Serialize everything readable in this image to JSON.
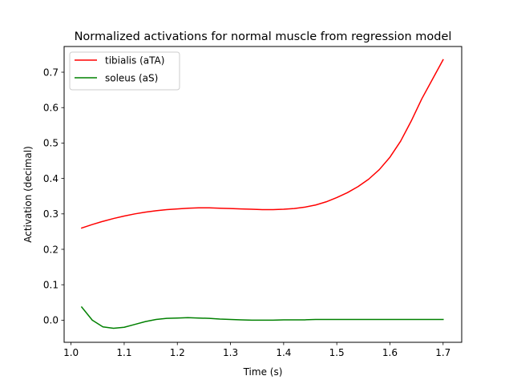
{
  "chart_data": {
    "type": "line",
    "title": "Normalized activations for normal muscle from regression model",
    "xlabel": "Time (s)",
    "ylabel": "Activation (decimal)",
    "xlim": [
      0.987,
      1.735
    ],
    "ylim": [
      -0.0625,
      0.7725
    ],
    "xticks": [
      1.0,
      1.1,
      1.2,
      1.3,
      1.4,
      1.5,
      1.6,
      1.7
    ],
    "xtick_labels": [
      "1.0",
      "1.1",
      "1.2",
      "1.3",
      "1.4",
      "1.5",
      "1.6",
      "1.7"
    ],
    "yticks": [
      0.0,
      0.1,
      0.2,
      0.3,
      0.4,
      0.5,
      0.6,
      0.7
    ],
    "ytick_labels": [
      "0.0",
      "0.1",
      "0.2",
      "0.3",
      "0.4",
      "0.5",
      "0.6",
      "0.7"
    ],
    "grid": false,
    "legend_position": "top-left",
    "series": [
      {
        "name": "tibialis (aTA)",
        "color": "#ff0000",
        "x": [
          1.02,
          1.04,
          1.06,
          1.08,
          1.1,
          1.12,
          1.14,
          1.16,
          1.18,
          1.2,
          1.22,
          1.24,
          1.26,
          1.28,
          1.3,
          1.32,
          1.34,
          1.36,
          1.38,
          1.4,
          1.42,
          1.44,
          1.46,
          1.48,
          1.5,
          1.52,
          1.54,
          1.56,
          1.58,
          1.6,
          1.62,
          1.64,
          1.66,
          1.68,
          1.7
        ],
        "y": [
          0.26,
          0.27,
          0.279,
          0.287,
          0.294,
          0.3,
          0.305,
          0.309,
          0.312,
          0.314,
          0.316,
          0.317,
          0.317,
          0.316,
          0.315,
          0.314,
          0.313,
          0.312,
          0.312,
          0.313,
          0.315,
          0.319,
          0.325,
          0.334,
          0.346,
          0.36,
          0.377,
          0.398,
          0.425,
          0.46,
          0.505,
          0.562,
          0.625,
          0.68,
          0.735
        ]
      },
      {
        "name": "soleus (aS)",
        "color": "#008000",
        "x": [
          1.02,
          1.04,
          1.06,
          1.08,
          1.1,
          1.12,
          1.14,
          1.16,
          1.18,
          1.2,
          1.22,
          1.24,
          1.26,
          1.28,
          1.3,
          1.32,
          1.34,
          1.36,
          1.38,
          1.4,
          1.42,
          1.44,
          1.46,
          1.48,
          1.5,
          1.52,
          1.54,
          1.56,
          1.58,
          1.6,
          1.62,
          1.64,
          1.66,
          1.68,
          1.7
        ],
        "y": [
          0.037,
          0.0,
          -0.019,
          -0.023,
          -0.02,
          -0.012,
          -0.004,
          0.002,
          0.005,
          0.006,
          0.007,
          0.006,
          0.005,
          0.003,
          0.002,
          0.001,
          0.0,
          0.0,
          0.0,
          0.001,
          0.001,
          0.001,
          0.002,
          0.002,
          0.002,
          0.002,
          0.002,
          0.002,
          0.002,
          0.002,
          0.002,
          0.002,
          0.002,
          0.002,
          0.002
        ]
      }
    ]
  }
}
